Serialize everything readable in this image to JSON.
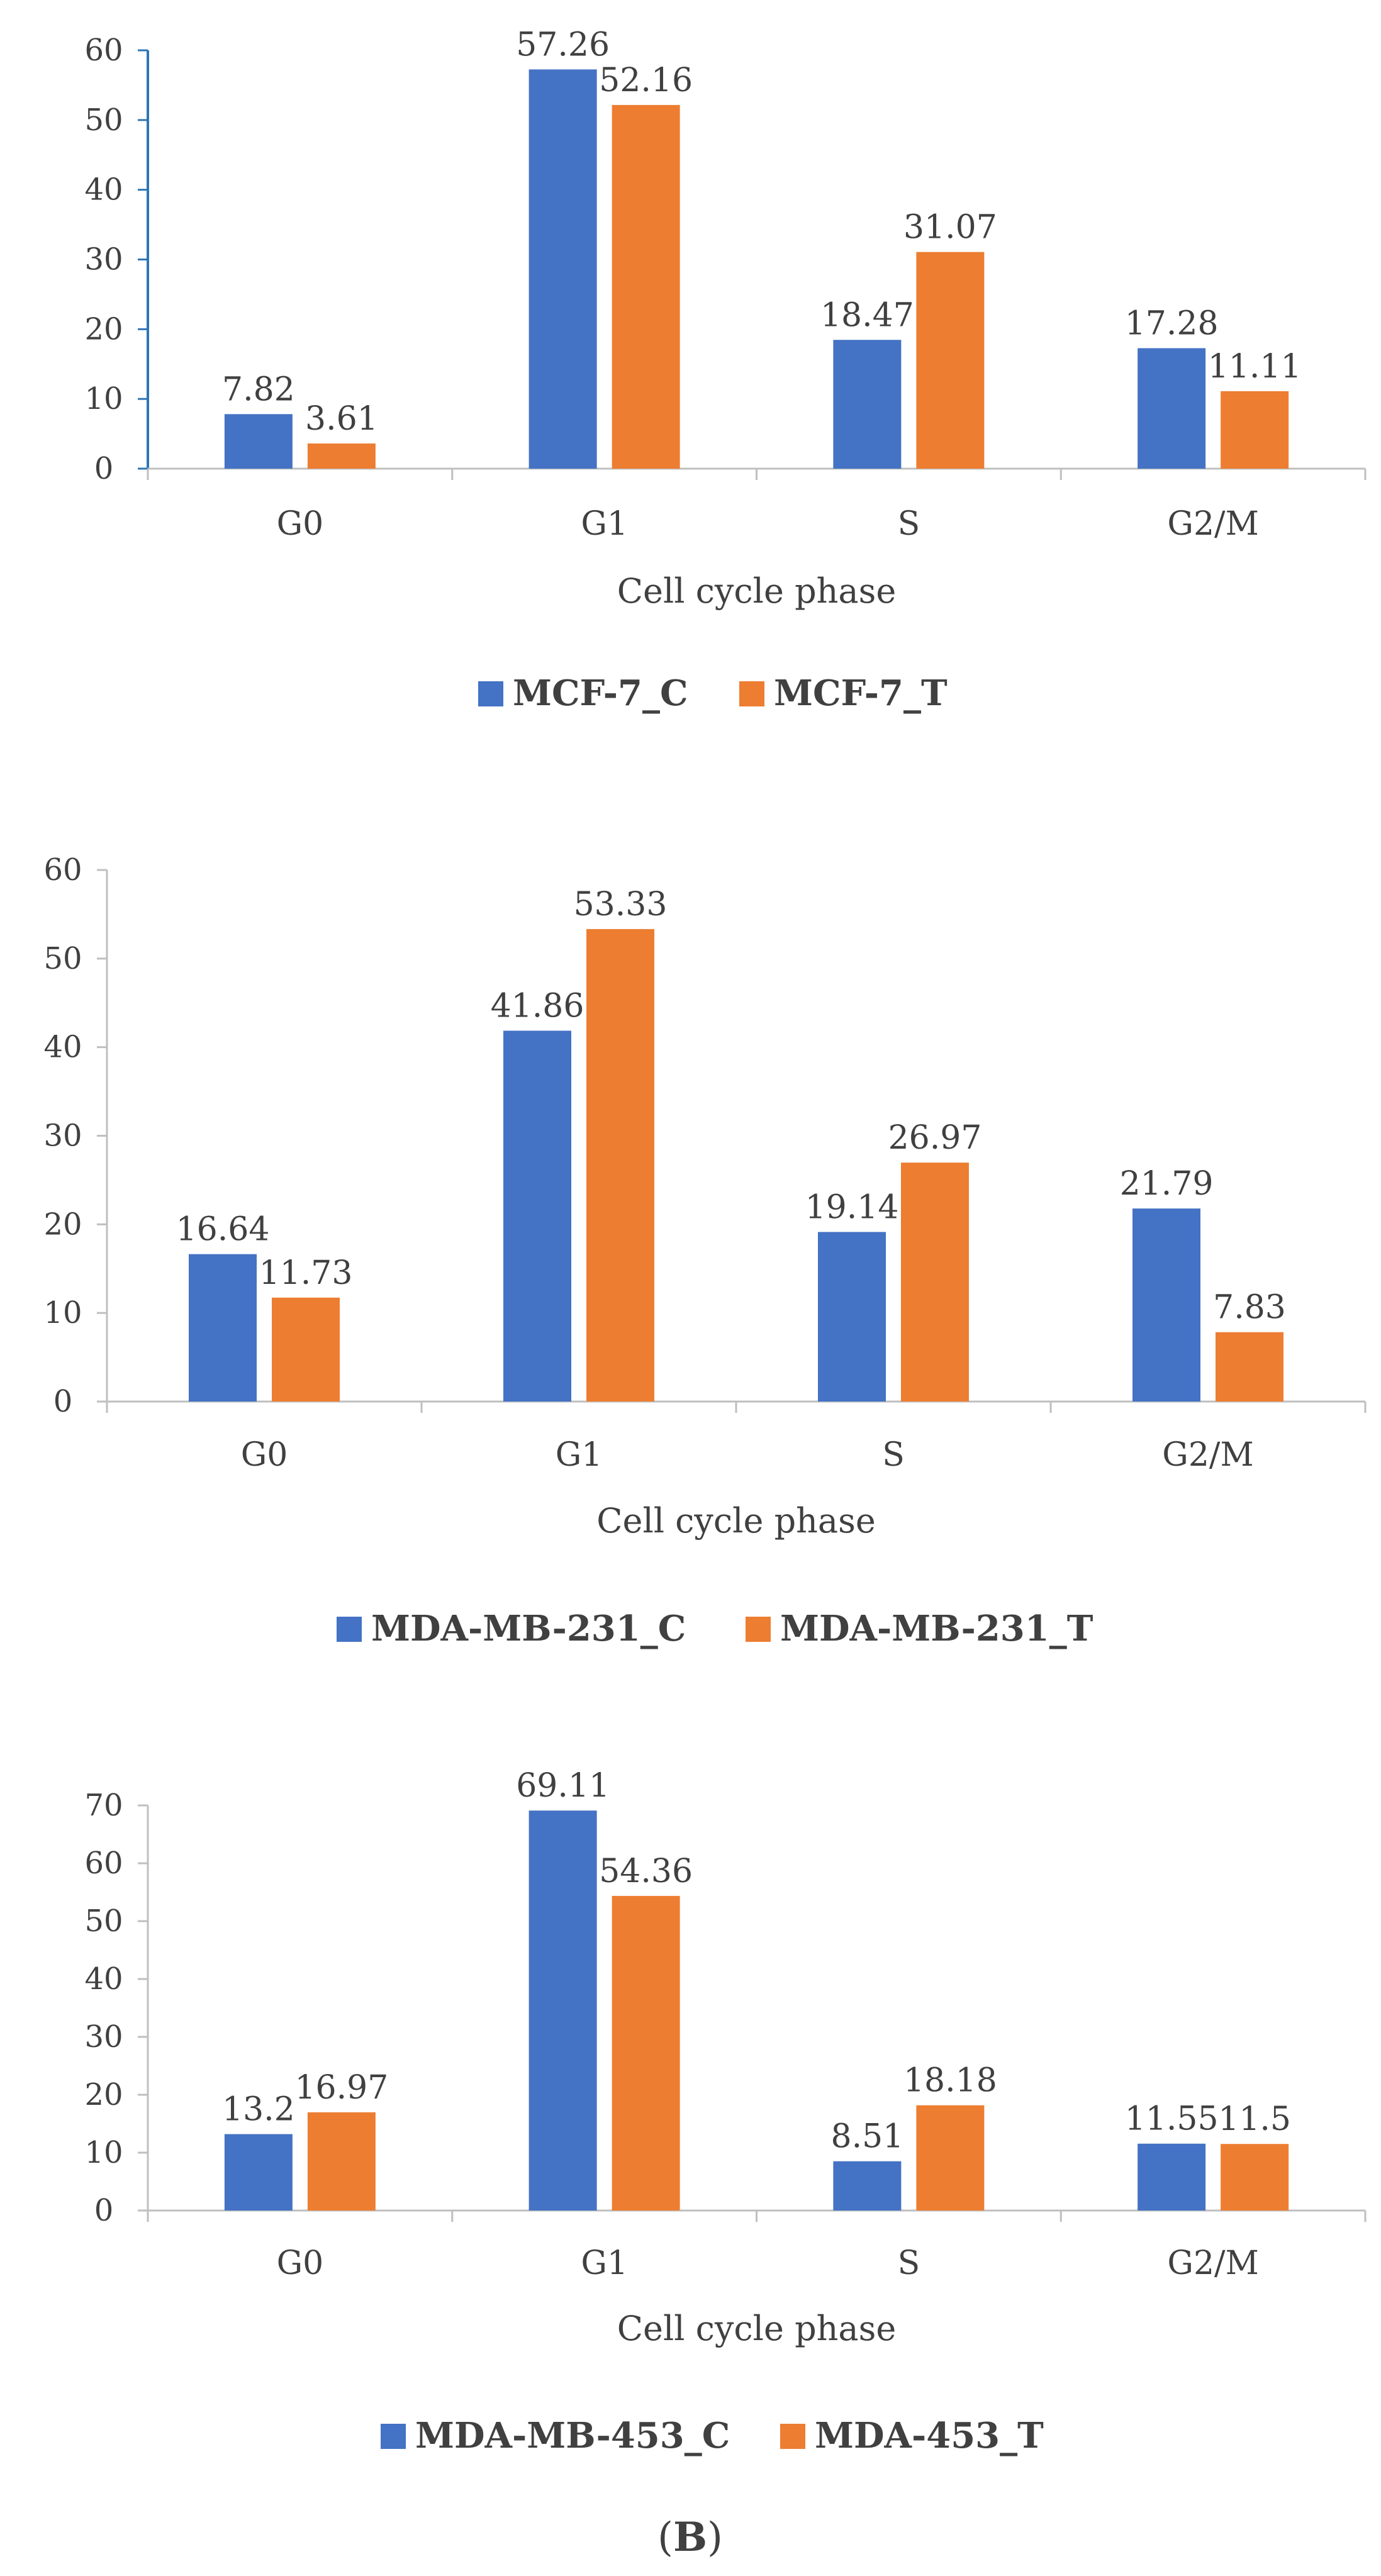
{
  "chart_data": [
    {
      "type": "bar",
      "categories": [
        "G0",
        "G1",
        "S",
        "G2/M"
      ],
      "series": [
        {
          "name": "MCF-7_C",
          "values": [
            7.82,
            57.26,
            18.47,
            17.28
          ],
          "color": "#4472C4"
        },
        {
          "name": "MCF-7_T",
          "values": [
            3.61,
            52.16,
            31.07,
            11.11
          ],
          "color": "#ED7D31"
        }
      ],
      "xlabel": "Cell cycle phase",
      "ylabel": "",
      "ylim": [
        0,
        60
      ],
      "yticks": [
        0,
        10,
        20,
        30,
        40,
        50,
        60
      ],
      "legend": "bottom"
    },
    {
      "type": "bar",
      "categories": [
        "G0",
        "G1",
        "S",
        "G2/M"
      ],
      "series": [
        {
          "name": "MDA-MB-231_C",
          "values": [
            16.64,
            41.86,
            19.14,
            21.79
          ],
          "color": "#4472C4"
        },
        {
          "name": "MDA-MB-231_T",
          "values": [
            11.73,
            53.33,
            26.97,
            7.83
          ],
          "color": "#ED7D31"
        }
      ],
      "xlabel": "Cell cycle phase",
      "ylabel": "",
      "ylim": [
        0,
        60
      ],
      "yticks": [
        0,
        10,
        20,
        30,
        40,
        50,
        60
      ],
      "legend": "bottom"
    },
    {
      "type": "bar",
      "categories": [
        "G0",
        "G1",
        "S",
        "G2/M"
      ],
      "series": [
        {
          "name": "MDA-MB-453_C",
          "values": [
            13.2,
            69.11,
            8.51,
            11.55
          ],
          "color": "#4472C4"
        },
        {
          "name": "MDA-453_T",
          "values": [
            16.97,
            54.36,
            18.18,
            11.5
          ],
          "color": "#ED7D31"
        }
      ],
      "xlabel": "Cell cycle phase",
      "ylabel": "",
      "ylim": [
        0,
        70
      ],
      "yticks": [
        0,
        10,
        20,
        30,
        40,
        50,
        60,
        70
      ],
      "legend": "bottom"
    }
  ],
  "caption": {
    "open": "(",
    "letter": "B",
    "close": ")"
  },
  "colors": {
    "axis": "#BFBFBF",
    "left_axis_chart1": "#2E75B6",
    "text": "#404040"
  }
}
